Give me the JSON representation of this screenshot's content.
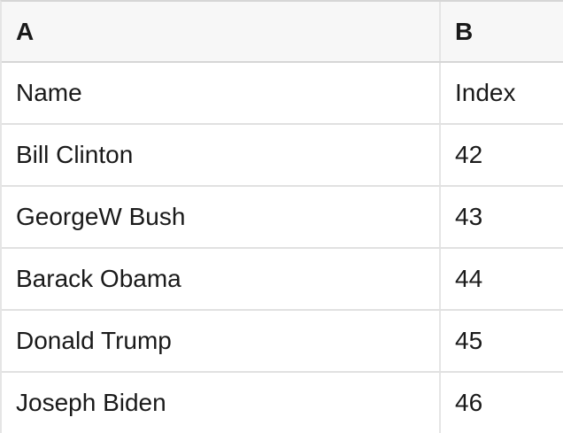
{
  "table": {
    "columns": [
      {
        "label": "A"
      },
      {
        "label": "B"
      }
    ],
    "rows": [
      {
        "cells": [
          "Name",
          "Index"
        ]
      },
      {
        "cells": [
          "Bill Clinton",
          "42"
        ]
      },
      {
        "cells": [
          "GeorgeW Bush",
          "43"
        ]
      },
      {
        "cells": [
          "Barack Obama",
          "44"
        ]
      },
      {
        "cells": [
          "Donald Trump",
          "45"
        ]
      },
      {
        "cells": [
          "Joseph Biden",
          "46"
        ]
      }
    ],
    "colors": {
      "header_bg": "#f7f7f7",
      "header_border": "#d6d6d6",
      "grid_line": "#e1e1e1",
      "column_divider": "#e5e5e5",
      "text": "#1a1a1a"
    }
  }
}
